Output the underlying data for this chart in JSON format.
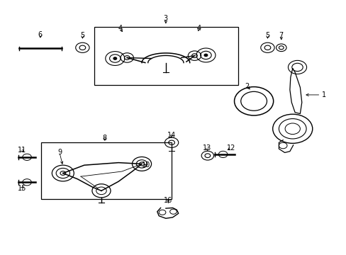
{
  "background_color": "#ffffff",
  "line_color": "#000000",
  "text_color": "#000000",
  "font_size_label": 7,
  "fig_width": 4.89,
  "fig_height": 3.6,
  "dpi": 100
}
